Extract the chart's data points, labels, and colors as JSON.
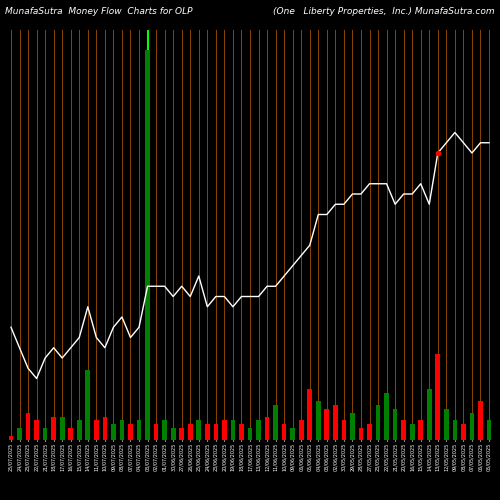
{
  "title_left": "MunafaSutra  Money Flow  Charts for OLP",
  "title_right": "(One   Liberty Properties,  Inc.) MunafaSutra.com",
  "background_color": "#000000",
  "bar_colors": [
    "red",
    "green",
    "red",
    "red",
    "green",
    "red",
    "green",
    "red",
    "green",
    "green",
    "red",
    "red",
    "green",
    "green",
    "red",
    "green",
    "green",
    "red",
    "green",
    "green",
    "red",
    "red",
    "green",
    "red",
    "red",
    "red",
    "green",
    "red",
    "green",
    "green",
    "red",
    "green",
    "red",
    "green",
    "red",
    "red",
    "green",
    "red",
    "red",
    "red",
    "green",
    "red",
    "red",
    "green",
    "green",
    "green",
    "red",
    "green",
    "red",
    "green",
    "red",
    "green",
    "green",
    "red",
    "green",
    "red",
    "green"
  ],
  "bar_values": [
    1,
    3,
    7,
    5,
    3,
    6,
    6,
    3,
    5,
    18,
    5,
    6,
    4,
    5,
    4,
    5,
    100,
    4,
    5,
    3,
    3,
    4,
    5,
    4,
    4,
    5,
    5,
    4,
    3,
    5,
    6,
    9,
    4,
    3,
    5,
    13,
    10,
    8,
    9,
    5,
    7,
    3,
    4,
    9,
    12,
    8,
    5,
    4,
    5,
    13,
    22,
    8,
    5,
    4,
    7,
    10,
    5
  ],
  "line_values": [
    23.5,
    22.5,
    21.5,
    21.0,
    22.0,
    22.5,
    22.0,
    22.5,
    23.0,
    24.5,
    23.0,
    22.5,
    23.5,
    24.0,
    23.0,
    23.5,
    25.5,
    25.5,
    25.5,
    25.0,
    25.5,
    25.0,
    26.0,
    24.5,
    25.0,
    25.0,
    24.5,
    25.0,
    25.0,
    25.0,
    25.5,
    25.5,
    26.0,
    26.5,
    27.0,
    27.5,
    29.0,
    29.0,
    29.5,
    29.5,
    30.0,
    30.0,
    30.5,
    30.5,
    30.5,
    29.5,
    30.0,
    30.0,
    30.5,
    29.5,
    32.0,
    32.5,
    33.0,
    32.5,
    32.0,
    32.5,
    32.5
  ],
  "vline_color": "#8B4500",
  "vline_special_idx": 16,
  "vline_special_color": "#00FF00",
  "xlabels": [
    "25/07/2025",
    "24/07/2025",
    "23/07/2025",
    "22/07/2025",
    "21/07/2025",
    "18/07/2025",
    "17/07/2025",
    "16/07/2025",
    "15/07/2025",
    "14/07/2025",
    "11/07/2025",
    "10/07/2025",
    "09/07/2025",
    "08/07/2025",
    "07/07/2025",
    "04/07/2025",
    "03/07/2025",
    "02/07/2025",
    "01/07/2025",
    "30/06/2025",
    "27/06/2025",
    "26/06/2025",
    "25/06/2025",
    "24/06/2025",
    "23/06/2025",
    "20/06/2025",
    "19/06/2025",
    "18/06/2025",
    "17/06/2025",
    "13/06/2025",
    "12/06/2025",
    "11/06/2025",
    "10/06/2025",
    "09/06/2025",
    "06/06/2025",
    "05/06/2025",
    "04/06/2025",
    "03/06/2025",
    "02/06/2025",
    "30/05/2025",
    "29/05/2025",
    "28/05/2025",
    "27/05/2025",
    "23/05/2025",
    "22/05/2025",
    "21/05/2025",
    "20/05/2025",
    "16/05/2025",
    "15/05/2025",
    "14/05/2025",
    "13/05/2025",
    "12/05/2025",
    "09/05/2025",
    "08/05/2025",
    "07/05/2025",
    "06/05/2025",
    "05/05/2025"
  ],
  "line_color": "#FFFFFF",
  "ylim_bars": [
    0,
    105
  ],
  "ylim_line_min": 18.0,
  "ylim_line_max": 38.0,
  "line_marker_idx": 50,
  "line_marker_color": "red"
}
